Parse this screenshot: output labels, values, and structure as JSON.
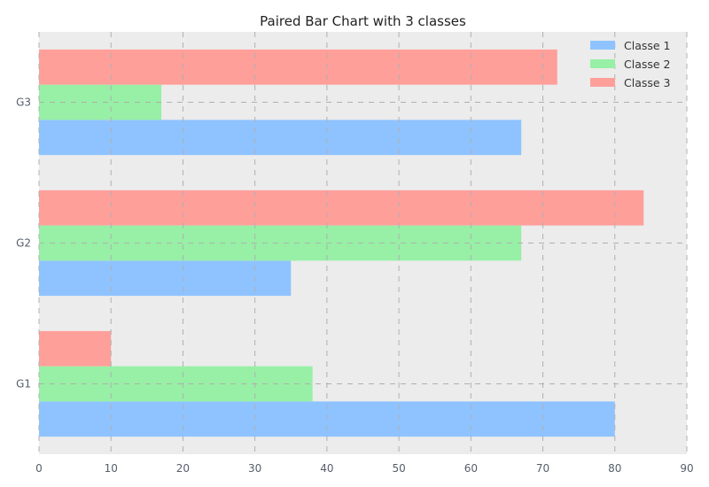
{
  "chart_data": {
    "type": "bar",
    "orientation": "horizontal",
    "title": "Paired Bar Chart with 3 classes",
    "xlabel": "",
    "ylabel": "",
    "categories": [
      "G1",
      "G2",
      "G3"
    ],
    "series": [
      {
        "name": "Classe 1",
        "values": [
          80,
          35,
          67
        ],
        "color": "#8fc3ff"
      },
      {
        "name": "Classe 2",
        "values": [
          38,
          67,
          17
        ],
        "color": "#97f0a5"
      },
      {
        "name": "Classe 3",
        "values": [
          10,
          84,
          72
        ],
        "color": "#ff9f9a"
      }
    ],
    "xlim": [
      0,
      90
    ],
    "xticks": [
      0,
      10,
      20,
      30,
      40,
      50,
      60,
      70,
      80,
      90
    ],
    "grid": true,
    "legend_position": "top-right",
    "background": "#ececec"
  }
}
